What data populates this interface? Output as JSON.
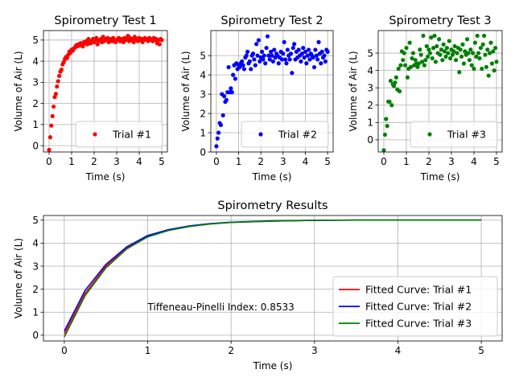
{
  "figure": {
    "background": "#ffffff"
  },
  "chart_data": [
    {
      "type": "scatter",
      "title": "Spirometry Test 1",
      "xlabel": "Time (s)",
      "ylabel": "Volume of Air (L)",
      "xlim": [
        -0.25,
        5.25
      ],
      "ylim": [
        -0.3,
        5.45
      ],
      "xticks": [
        0,
        1,
        2,
        3,
        4,
        5
      ],
      "yticks": [
        0,
        1,
        2,
        3,
        4,
        5
      ],
      "grid": true,
      "legend": {
        "placement": "lower-right"
      },
      "series": [
        {
          "name": "Trial #1",
          "color": "#ff0000",
          "x": [
            0.0,
            0.05,
            0.1,
            0.15,
            0.2,
            0.25,
            0.3,
            0.35,
            0.4,
            0.45,
            0.5,
            0.55,
            0.6,
            0.65,
            0.7,
            0.75,
            0.8,
            0.85,
            0.9,
            0.95,
            1.0,
            1.05,
            1.1,
            1.15,
            1.2,
            1.25,
            1.3,
            1.35,
            1.4,
            1.45,
            1.5,
            1.55,
            1.6,
            1.65,
            1.7,
            1.75,
            1.8,
            1.85,
            1.9,
            1.95,
            2.0,
            2.05,
            2.1,
            2.15,
            2.2,
            2.25,
            2.3,
            2.35,
            2.4,
            2.45,
            2.5,
            2.55,
            2.6,
            2.65,
            2.7,
            2.75,
            2.8,
            2.85,
            2.9,
            2.95,
            3.0,
            3.05,
            3.1,
            3.15,
            3.2,
            3.25,
            3.3,
            3.35,
            3.4,
            3.45,
            3.5,
            3.55,
            3.6,
            3.65,
            3.7,
            3.75,
            3.8,
            3.85,
            3.9,
            3.95,
            4.0,
            4.05,
            4.1,
            4.15,
            4.2,
            4.25,
            4.3,
            4.35,
            4.4,
            4.45,
            4.5,
            4.55,
            4.6,
            4.65,
            4.7,
            4.75,
            4.8,
            4.85,
            4.9,
            4.95,
            5.0
          ],
          "y": [
            -0.2,
            0.4,
            0.95,
            1.4,
            1.85,
            2.3,
            2.45,
            2.8,
            3.05,
            3.3,
            3.5,
            3.6,
            3.85,
            3.95,
            4.1,
            4.2,
            4.15,
            4.3,
            4.45,
            4.4,
            4.55,
            4.5,
            4.6,
            4.65,
            4.75,
            4.7,
            4.8,
            4.75,
            4.85,
            4.8,
            4.7,
            4.9,
            4.85,
            4.95,
            4.8,
            5.05,
            4.9,
            4.85,
            4.95,
            5.05,
            4.9,
            5.0,
            5.1,
            4.8,
            4.95,
            5.0,
            5.05,
            4.9,
            5.15,
            4.95,
            5.05,
            5.0,
            5.1,
            4.9,
            5.0,
            5.05,
            4.95,
            5.1,
            5.0,
            4.9,
            5.0,
            5.05,
            5.1,
            4.95,
            5.0,
            5.05,
            4.9,
            5.1,
            5.0,
            5.05,
            5.2,
            4.95,
            5.1,
            5.0,
            5.05,
            4.9,
            5.15,
            5.0,
            5.05,
            4.95,
            5.1,
            5.0,
            5.05,
            4.9,
            5.0,
            5.1,
            5.05,
            5.0,
            4.95,
            5.1,
            5.05,
            5.0,
            4.95,
            5.1,
            5.0,
            5.05,
            4.85,
            5.0,
            4.8,
            5.05,
            5.0
          ]
        }
      ]
    },
    {
      "type": "scatter",
      "title": "Spirometry Test 2",
      "xlabel": "Time (s)",
      "ylabel": "Volume of Air (L)",
      "xlim": [
        -0.25,
        5.25
      ],
      "ylim": [
        0,
        6.3
      ],
      "xticks": [
        0,
        1,
        2,
        3,
        4,
        5
      ],
      "yticks": [
        0,
        1,
        2,
        3,
        4,
        5
      ],
      "grid": true,
      "legend": {
        "placement": "lower-right"
      },
      "series": [
        {
          "name": "Trial #2",
          "color": "#0000ff",
          "x": [
            0.0,
            0.05,
            0.1,
            0.15,
            0.2,
            0.25,
            0.3,
            0.35,
            0.4,
            0.45,
            0.5,
            0.55,
            0.6,
            0.65,
            0.7,
            0.75,
            0.8,
            0.85,
            0.9,
            0.95,
            1.0,
            1.05,
            1.1,
            1.15,
            1.2,
            1.25,
            1.3,
            1.35,
            1.4,
            1.45,
            1.5,
            1.55,
            1.6,
            1.65,
            1.7,
            1.75,
            1.8,
            1.85,
            1.9,
            1.95,
            2.0,
            2.05,
            2.1,
            2.15,
            2.2,
            2.25,
            2.3,
            2.35,
            2.4,
            2.45,
            2.5,
            2.55,
            2.6,
            2.65,
            2.7,
            2.75,
            2.8,
            2.85,
            2.9,
            2.95,
            3.0,
            3.05,
            3.1,
            3.15,
            3.2,
            3.25,
            3.3,
            3.35,
            3.4,
            3.45,
            3.5,
            3.55,
            3.6,
            3.65,
            3.7,
            3.75,
            3.8,
            3.85,
            3.9,
            3.95,
            4.0,
            4.05,
            4.1,
            4.15,
            4.2,
            4.25,
            4.3,
            4.35,
            4.4,
            4.45,
            4.5,
            4.55,
            4.6,
            4.65,
            4.7,
            4.75,
            4.8,
            4.85,
            4.9,
            4.95,
            5.0
          ],
          "y": [
            0.3,
            0.7,
            1.0,
            1.5,
            1.4,
            3.0,
            1.9,
            2.9,
            2.6,
            2.7,
            3.1,
            4.4,
            3.1,
            3.3,
            3.1,
            4.0,
            4.5,
            3.8,
            4.6,
            4.3,
            4.5,
            4.4,
            4.6,
            4.7,
            4.5,
            4.3,
            4.9,
            5.0,
            5.2,
            4.6,
            4.7,
            4.3,
            5.0,
            5.1,
            4.8,
            4.5,
            5.6,
            5.0,
            5.8,
            4.7,
            4.9,
            5.2,
            4.8,
            5.0,
            4.6,
            5.4,
            6.0,
            5.0,
            4.8,
            5.2,
            5.0,
            4.7,
            5.3,
            4.9,
            5.1,
            5.0,
            4.6,
            4.9,
            5.2,
            4.8,
            5.1,
            5.7,
            4.8,
            4.6,
            5.3,
            5.0,
            4.8,
            5.1,
            4.1,
            5.4,
            5.6,
            4.8,
            5.2,
            4.9,
            5.3,
            5.0,
            4.7,
            5.1,
            5.4,
            4.9,
            5.2,
            4.6,
            5.0,
            5.3,
            4.8,
            5.1,
            5.0,
            4.9,
            4.4,
            5.3,
            5.0,
            4.8,
            5.7,
            5.1,
            4.6,
            5.2,
            4.9,
            5.0,
            4.7,
            5.3,
            5.2
          ]
        }
      ]
    },
    {
      "type": "scatter",
      "title": "Spirometry Test 3",
      "xlabel": "Time (s)",
      "ylabel": "Volume of Air (L)",
      "xlim": [
        -0.25,
        5.25
      ],
      "ylim": [
        -0.7,
        6.3
      ],
      "xticks": [
        0,
        1,
        2,
        3,
        4,
        5
      ],
      "yticks": [
        0,
        1,
        2,
        3,
        4,
        5
      ],
      "grid": true,
      "legend": {
        "placement": "lower-right"
      },
      "series": [
        {
          "name": "Trial #3",
          "color": "#008000",
          "x": [
            0.0,
            0.05,
            0.1,
            0.15,
            0.2,
            0.25,
            0.3,
            0.35,
            0.4,
            0.45,
            0.5,
            0.55,
            0.6,
            0.65,
            0.7,
            0.75,
            0.8,
            0.85,
            0.9,
            0.95,
            1.0,
            1.05,
            1.1,
            1.15,
            1.2,
            1.25,
            1.3,
            1.35,
            1.4,
            1.45,
            1.5,
            1.55,
            1.6,
            1.65,
            1.7,
            1.75,
            1.8,
            1.85,
            1.9,
            1.95,
            2.0,
            2.05,
            2.1,
            2.15,
            2.2,
            2.25,
            2.3,
            2.35,
            2.4,
            2.45,
            2.5,
            2.55,
            2.6,
            2.65,
            2.7,
            2.75,
            2.8,
            2.85,
            2.9,
            2.95,
            3.0,
            3.05,
            3.1,
            3.15,
            3.2,
            3.25,
            3.3,
            3.35,
            3.4,
            3.45,
            3.5,
            3.55,
            3.6,
            3.65,
            3.7,
            3.75,
            3.8,
            3.85,
            3.9,
            3.95,
            4.0,
            4.05,
            4.1,
            4.15,
            4.2,
            4.25,
            4.3,
            4.35,
            4.4,
            4.45,
            4.5,
            4.55,
            4.6,
            4.65,
            4.7,
            4.75,
            4.8,
            4.85,
            4.9,
            4.95,
            5.0
          ],
          "y": [
            -0.6,
            0.3,
            1.2,
            0.8,
            2.2,
            2.2,
            3.4,
            2.0,
            3.2,
            3.1,
            3.3,
            3.6,
            2.9,
            4.1,
            2.8,
            4.3,
            5.1,
            4.6,
            5.0,
            4.3,
            5.3,
            3.6,
            4.1,
            5.6,
            4.2,
            4.7,
            5.0,
            4.3,
            4.6,
            4.4,
            4.2,
            4.4,
            5.2,
            4.9,
            4.5,
            6.0,
            4.3,
            4.6,
            5.4,
            4.8,
            5.2,
            5.0,
            5.9,
            4.7,
            5.3,
            6.0,
            4.5,
            5.4,
            5.0,
            5.8,
            4.9,
            5.2,
            4.6,
            5.5,
            5.1,
            4.8,
            5.3,
            5.0,
            5.7,
            4.7,
            5.2,
            4.9,
            5.1,
            5.4,
            4.6,
            5.0,
            5.3,
            3.9,
            5.2,
            4.8,
            5.5,
            4.4,
            5.1,
            4.9,
            5.8,
            5.0,
            4.6,
            5.2,
            4.3,
            5.0,
            4.1,
            5.6,
            4.8,
            6.0,
            5.0,
            4.7,
            5.3,
            4.1,
            5.5,
            6.0,
            4.9,
            4.2,
            5.2,
            3.7,
            5.0,
            5.6,
            4.4,
            5.1,
            4.0,
            5.3,
            4.5
          ]
        }
      ]
    },
    {
      "type": "line",
      "title": "Spirometry Results",
      "xlabel": "Time (s)",
      "ylabel": "Volume of Air (L)",
      "xlim": [
        -0.25,
        5.25
      ],
      "ylim": [
        -0.25,
        5.2
      ],
      "xticks": [
        0,
        1,
        2,
        3,
        4,
        5
      ],
      "yticks": [
        0,
        1,
        2,
        3,
        4,
        5
      ],
      "grid": true,
      "legend": {
        "placement": "lower-right"
      },
      "annotation": {
        "text": "Tiffeneau-Pinelli Index: 0.8533",
        "x": 1.0,
        "y": 1.08
      },
      "series": [
        {
          "name": "Fitted Curve: Trial #1",
          "color": "#ff0000",
          "x": [
            0,
            0.25,
            0.5,
            0.75,
            1.0,
            1.25,
            1.5,
            1.75,
            2.0,
            2.5,
            3.0,
            3.5,
            4.0,
            4.5,
            5.0
          ],
          "y": [
            0.05,
            1.82,
            3.0,
            3.8,
            4.3,
            4.57,
            4.73,
            4.84,
            4.9,
            4.96,
            4.99,
            5.0,
            5.0,
            5.0,
            5.0
          ]
        },
        {
          "name": "Fitted Curve: Trial #2",
          "color": "#0000ff",
          "x": [
            0,
            0.25,
            0.5,
            0.75,
            1.0,
            1.25,
            1.5,
            1.75,
            2.0,
            2.5,
            3.0,
            3.5,
            4.0,
            4.5,
            5.0
          ],
          "y": [
            0.18,
            1.95,
            3.08,
            3.84,
            4.33,
            4.59,
            4.75,
            4.85,
            4.91,
            4.97,
            4.99,
            5.0,
            5.0,
            5.0,
            5.0
          ]
        },
        {
          "name": "Fitted Curve: Trial #3",
          "color": "#008000",
          "x": [
            0,
            0.25,
            0.5,
            0.75,
            1.0,
            1.25,
            1.5,
            1.75,
            2.0,
            2.5,
            3.0,
            3.5,
            4.0,
            4.5,
            5.0
          ],
          "y": [
            -0.08,
            1.72,
            2.93,
            3.75,
            4.27,
            4.55,
            4.72,
            4.83,
            4.9,
            4.96,
            4.99,
            5.0,
            5.0,
            5.0,
            5.0
          ]
        }
      ]
    }
  ]
}
